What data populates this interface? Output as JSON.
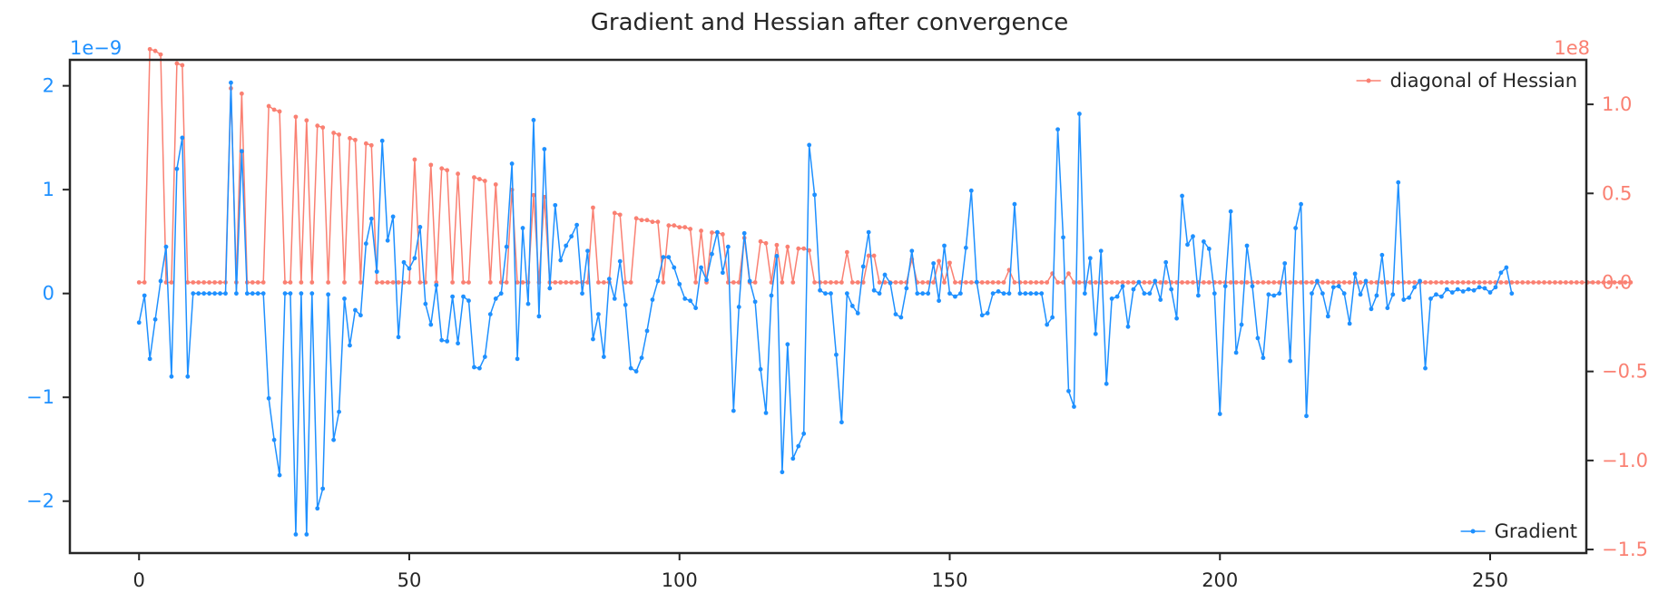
{
  "chart_data": {
    "type": "line",
    "title": "Gradient and Hessian after convergence",
    "xlabel": "",
    "ylabel": "",
    "xlim": [
      -12.8,
      267.8
    ],
    "xticks": [
      0,
      50,
      100,
      150,
      200,
      250
    ],
    "left_axis": {
      "ylim": [
        -2.5,
        2.25
      ],
      "ticks": [
        -2,
        -1,
        0,
        1,
        2
      ],
      "tick_labels": [
        "−2",
        "−1",
        "0",
        "1",
        "2"
      ],
      "offset_text": "1e−9",
      "color": "#1e90ff"
    },
    "right_axis": {
      "ylim": [
        -1.52,
        1.25
      ],
      "ticks": [
        -1.5,
        -1.0,
        -0.5,
        0.0,
        0.5,
        1.0
      ],
      "tick_labels": [
        "−1.5",
        "−1.0",
        "−0.5",
        "0.0",
        "0.5",
        "1.0"
      ],
      "offset_text": "1e8",
      "color": "#fa8072"
    },
    "grid": false,
    "series": [
      {
        "name": "Gradient",
        "axis": "left",
        "color": "#1e90ff",
        "legend_position": "lower right",
        "x_start": 0,
        "x_step": 1,
        "values": [
          -0.28,
          -0.02,
          -0.63,
          -0.25,
          0.12,
          0.45,
          -0.8,
          1.2,
          1.5,
          -0.8,
          0,
          0,
          0,
          0,
          0,
          0,
          0,
          2.03,
          0,
          1.37,
          0,
          0,
          0,
          0,
          -1.01,
          -1.41,
          -1.75,
          0,
          0,
          -2.32,
          0,
          -2.32,
          0,
          -2.07,
          -1.88,
          -0.01,
          -1.41,
          -1.14,
          -0.05,
          -0.5,
          -0.16,
          -0.21,
          0.48,
          0.72,
          0.21,
          1.47,
          0.51,
          0.74,
          -0.42,
          0.3,
          0.24,
          0.34,
          0.64,
          -0.1,
          -0.3,
          0.08,
          -0.45,
          -0.46,
          -0.03,
          -0.48,
          -0.03,
          -0.07,
          -0.71,
          -0.72,
          -0.61,
          -0.2,
          -0.05,
          0,
          0.45,
          1.25,
          -0.63,
          0.63,
          -0.1,
          1.67,
          -0.22,
          1.39,
          0.05,
          0.85,
          0.32,
          0.46,
          0.55,
          0.66,
          0,
          0.41,
          -0.44,
          -0.2,
          -0.61,
          0.14,
          -0.05,
          0.31,
          -0.11,
          -0.72,
          -0.75,
          -0.62,
          -0.36,
          -0.06,
          0.12,
          0.35,
          0.35,
          0.25,
          0.09,
          -0.05,
          -0.07,
          -0.14,
          0.25,
          0.13,
          0.38,
          0.59,
          0.2,
          0.45,
          -1.13,
          -0.13,
          0.58,
          0.12,
          -0.08,
          -0.73,
          -1.15,
          -0.02,
          0.36,
          -1.72,
          -0.49,
          -1.59,
          -1.47,
          -1.35,
          1.43,
          0.95,
          0.03,
          0,
          0,
          -0.59,
          -1.24,
          0,
          -0.12,
          -0.19,
          0.26,
          0.59,
          0.03,
          0,
          0.18,
          0.1,
          -0.2,
          -0.23,
          0.05,
          0.41,
          0,
          0,
          0,
          0.29,
          -0.07,
          0.46,
          0,
          -0.03,
          0,
          0.44,
          0.99,
          0.11,
          -0.21,
          -0.19,
          0,
          0.02,
          0,
          0,
          0.86,
          0,
          0,
          0,
          0,
          0,
          -0.3,
          -0.23,
          1.58,
          0.54,
          -0.94,
          -1.09,
          1.73,
          0,
          0.34,
          -0.39,
          0.41,
          -0.87,
          -0.05,
          -0.03,
          0.07,
          -0.32,
          0.04,
          0.11,
          0,
          0,
          0.12,
          -0.06,
          0.3,
          0.04,
          -0.24,
          0.94,
          0.47,
          0.55,
          -0.02,
          0.5,
          0.43,
          0,
          -1.16,
          0.07,
          0.79,
          -0.57,
          -0.3,
          0.46,
          0.07,
          -0.43,
          -0.62,
          -0.01,
          -0.02,
          0,
          0.29,
          -0.65,
          0.63,
          0.86,
          -1.18,
          0,
          0.12,
          0,
          -0.22,
          0.06,
          0.07,
          0,
          -0.29,
          0.19,
          -0.01,
          0.12,
          -0.15,
          -0.02,
          0.37,
          -0.14,
          -0.01,
          1.07,
          -0.06,
          -0.04,
          0.06,
          0.12,
          -0.72,
          -0.05,
          -0.01,
          -0.03,
          0.04,
          0.01,
          0.04,
          0.02,
          0.04,
          0.03,
          0.06,
          0.05,
          0.01,
          0.06,
          0.2,
          0.25,
          0
        ]
      },
      {
        "name": "diagonal of Hessian",
        "axis": "right",
        "color": "#fa8072",
        "legend_position": "upper right",
        "x_start": 0,
        "x_step": 1,
        "values": [
          0,
          0,
          1.31,
          1.3,
          1.28,
          0,
          0,
          1.23,
          1.22,
          0,
          0,
          0,
          0,
          0,
          0,
          0,
          0,
          1.09,
          0,
          1.06,
          0,
          0,
          0,
          0,
          0.99,
          0.97,
          0.96,
          0,
          0,
          0.93,
          0,
          0.91,
          0,
          0.88,
          0.87,
          0,
          0.84,
          0.83,
          0,
          0.81,
          0.8,
          0,
          0.78,
          0.77,
          0,
          0,
          0,
          0,
          0,
          0,
          0,
          0.69,
          0,
          0,
          0.66,
          0,
          0.64,
          0.63,
          0,
          0.61,
          0,
          0,
          0.59,
          0.58,
          0.57,
          0,
          0.55,
          0,
          0,
          0.52,
          0,
          0,
          0,
          0.49,
          0,
          0.48,
          0,
          0,
          0,
          0,
          0,
          0,
          0,
          0,
          0.42,
          0,
          0,
          0,
          0.39,
          0.38,
          0,
          0,
          0.36,
          0.35,
          0.35,
          0.34,
          0.34,
          0,
          0.32,
          0.32,
          0.31,
          0.31,
          0.3,
          0,
          0.29,
          0,
          0.28,
          0.28,
          0.27,
          0,
          0,
          0,
          0.25,
          0,
          0,
          0.23,
          0.22,
          0,
          0.21,
          0,
          0.2,
          0,
          0.19,
          0.19,
          0.18,
          0,
          0,
          0,
          0,
          0,
          0,
          0.17,
          0,
          0,
          0,
          0.15,
          0.15,
          0,
          0,
          0,
          0,
          0,
          0,
          0.13,
          0,
          0,
          0,
          0,
          0.12,
          0,
          0.11,
          0,
          0,
          0,
          0,
          0,
          0,
          0,
          0,
          0,
          0,
          0.07,
          0,
          0,
          0,
          0,
          0,
          0,
          0,
          0.05,
          0,
          0,
          0.05,
          0,
          0,
          0,
          0,
          0,
          0,
          0,
          0,
          0,
          0,
          0,
          0,
          0,
          0,
          0,
          0,
          0,
          0,
          0,
          0,
          0,
          0,
          0,
          0,
          0,
          0,
          0,
          0,
          0,
          0,
          0,
          0,
          0,
          0,
          0,
          0,
          0,
          0,
          0,
          0,
          0,
          0,
          0,
          0,
          0,
          0,
          0,
          0,
          0,
          0,
          0,
          0,
          0,
          0,
          0,
          0,
          0,
          0,
          0,
          0,
          0,
          0,
          0,
          0,
          0,
          0,
          0,
          0,
          0,
          0,
          0,
          0,
          0,
          0,
          0,
          0,
          0,
          0,
          0,
          0,
          0,
          0,
          0,
          0,
          0,
          0,
          0,
          0,
          0,
          0,
          0,
          0,
          0,
          0,
          0,
          0,
          0,
          0,
          0,
          0,
          0,
          0,
          0,
          0
        ]
      }
    ]
  }
}
